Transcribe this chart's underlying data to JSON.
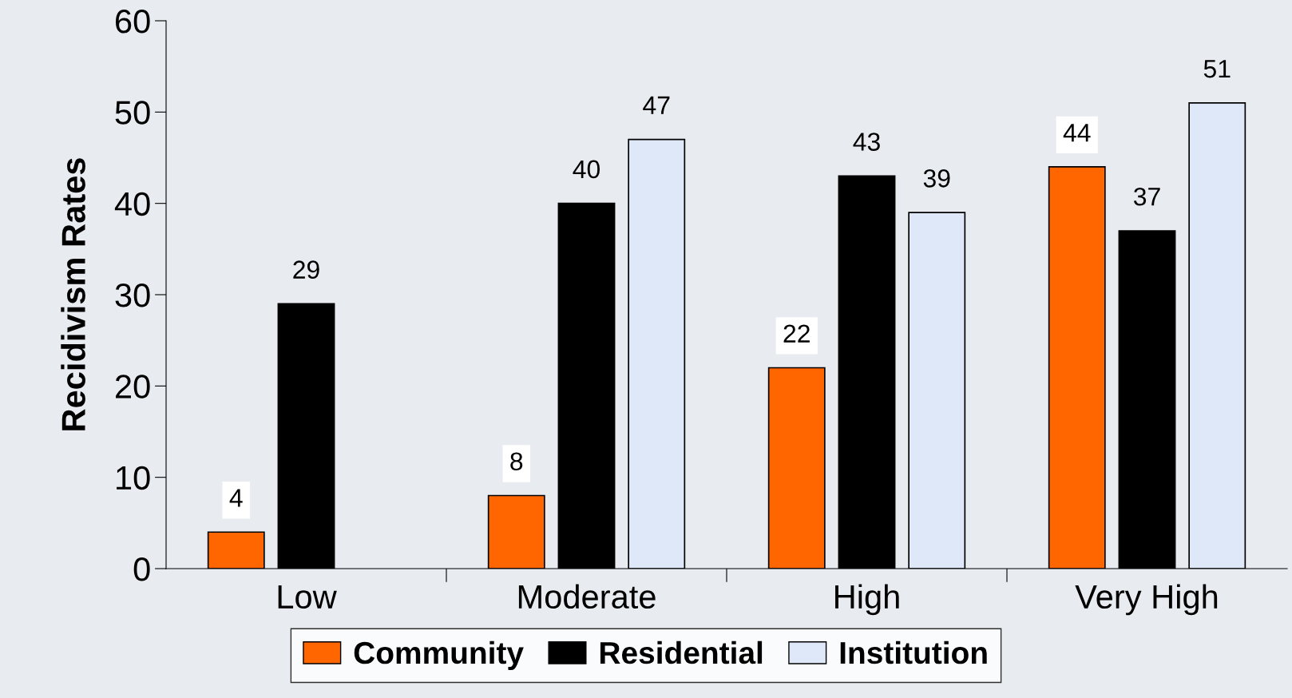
{
  "chart_data": {
    "type": "bar",
    "ylabel": "Recidivism Rates",
    "categories": [
      "Low",
      "Moderate",
      "High",
      "Very High"
    ],
    "series": [
      {
        "name": "Community",
        "color": "#ff6600",
        "values": [
          4,
          8,
          22,
          44
        ]
      },
      {
        "name": "Residential",
        "color": "#000000",
        "values": [
          29,
          40,
          43,
          37
        ]
      },
      {
        "name": "Institution",
        "color": "#dfe8f8",
        "values": [
          null,
          47,
          39,
          51
        ]
      }
    ],
    "ylim": [
      0,
      60
    ],
    "yticks": [
      0,
      10,
      20,
      30,
      40,
      50,
      60
    ],
    "data_labels": true,
    "grid": false,
    "legend": "bottom"
  }
}
